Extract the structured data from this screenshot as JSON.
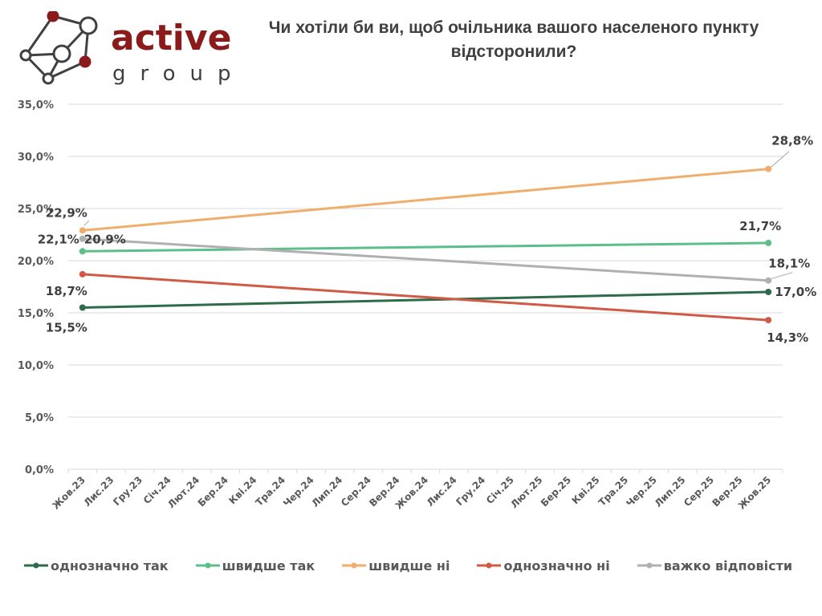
{
  "brand": {
    "name_top": "active",
    "name_bottom": "group",
    "color_primary": "#8b1a1a",
    "color_text": "#404040"
  },
  "title": "Чи хотіли би ви, щоб очільника вашого населеного пункту відсторонили?",
  "chart_data": {
    "type": "line",
    "title": "Чи хотіли би ви, щоб очільника вашого населеного пункту відсторонили?",
    "xlabel": "",
    "ylabel": "",
    "ylim": [
      0,
      35
    ],
    "yticks": [
      0,
      5,
      10,
      15,
      20,
      25,
      30,
      35
    ],
    "ytick_labels": [
      "0,0%",
      "5,0%",
      "10,0%",
      "15,0%",
      "20,0%",
      "25,0%",
      "30,0%",
      "35,0%"
    ],
    "grid": "horizontal",
    "legend": "bottom",
    "categories": [
      "Жов.23",
      "Лис.23",
      "Гру.23",
      "Січ.24",
      "Лют.24",
      "Бер.24",
      "Кві.24",
      "Тра.24",
      "Чер.24",
      "Лип.24",
      "Сер.24",
      "Вер.24",
      "Жов.24",
      "Лис.24",
      "Гру.24",
      "Січ.25",
      "Лют.25",
      "Бер.25",
      "Кві.25",
      "Тра.25",
      "Чер.25",
      "Лип.25",
      "Сер.25",
      "Вер.25",
      "Жов.25"
    ],
    "series": [
      {
        "name": "однозначно так",
        "color": "#2e6b4a",
        "points": [
          {
            "category": "Жов.23",
            "value": 15.5,
            "label": "15,5%"
          },
          {
            "category": "Жов.25",
            "value": 17.0,
            "label": "17,0%"
          }
        ]
      },
      {
        "name": "швидше так",
        "color": "#5cbf8a",
        "points": [
          {
            "category": "Жов.23",
            "value": 20.9,
            "label": "20,9%"
          },
          {
            "category": "Жов.25",
            "value": 21.7,
            "label": "21,7%"
          }
        ]
      },
      {
        "name": "швидше ні",
        "color": "#f0ad6b",
        "points": [
          {
            "category": "Жов.23",
            "value": 22.9,
            "label": "22,9%"
          },
          {
            "category": "Жов.25",
            "value": 28.8,
            "label": "28,8%"
          }
        ]
      },
      {
        "name": "однозначно ні",
        "color": "#d05a45",
        "points": [
          {
            "category": "Жов.23",
            "value": 18.7,
            "label": "18,7%"
          },
          {
            "category": "Жов.25",
            "value": 14.3,
            "label": "14,3%"
          }
        ]
      },
      {
        "name": "важко відповісти",
        "color": "#b0b0b0",
        "points": [
          {
            "category": "Жов.23",
            "value": 22.1,
            "label": "22,1%"
          },
          {
            "category": "Жов.25",
            "value": 18.1,
            "label": "18,1%"
          }
        ]
      }
    ]
  }
}
